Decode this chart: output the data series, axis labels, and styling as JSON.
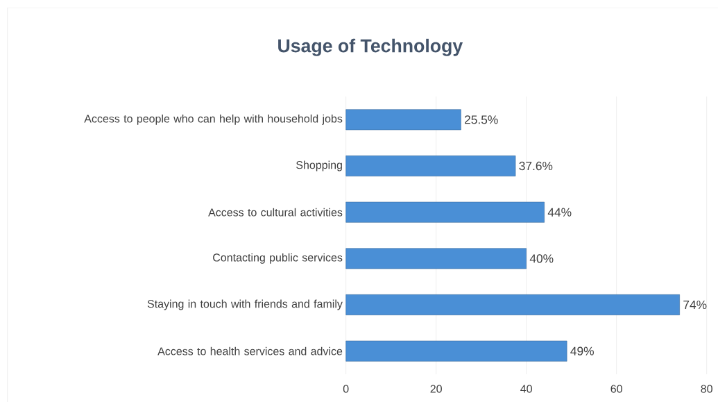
{
  "chart_data": {
    "type": "bar",
    "orientation": "horizontal",
    "title": "Usage of Technology",
    "categories": [
      "Access to people who can help with household jobs",
      "Shopping",
      "Access to cultural activities",
      "Contacting public services",
      "Staying in touch with friends and family",
      "Access to health services and advice"
    ],
    "values": [
      25.5,
      37.6,
      44,
      40,
      74,
      49
    ],
    "value_labels": [
      "25.5%",
      "37.6%",
      "44%",
      "40%",
      "74%",
      "49%"
    ],
    "color": "#4a8fd6",
    "xlim": [
      0,
      80
    ],
    "xticks": [
      0,
      20,
      40,
      60,
      80
    ],
    "grid": "x"
  }
}
